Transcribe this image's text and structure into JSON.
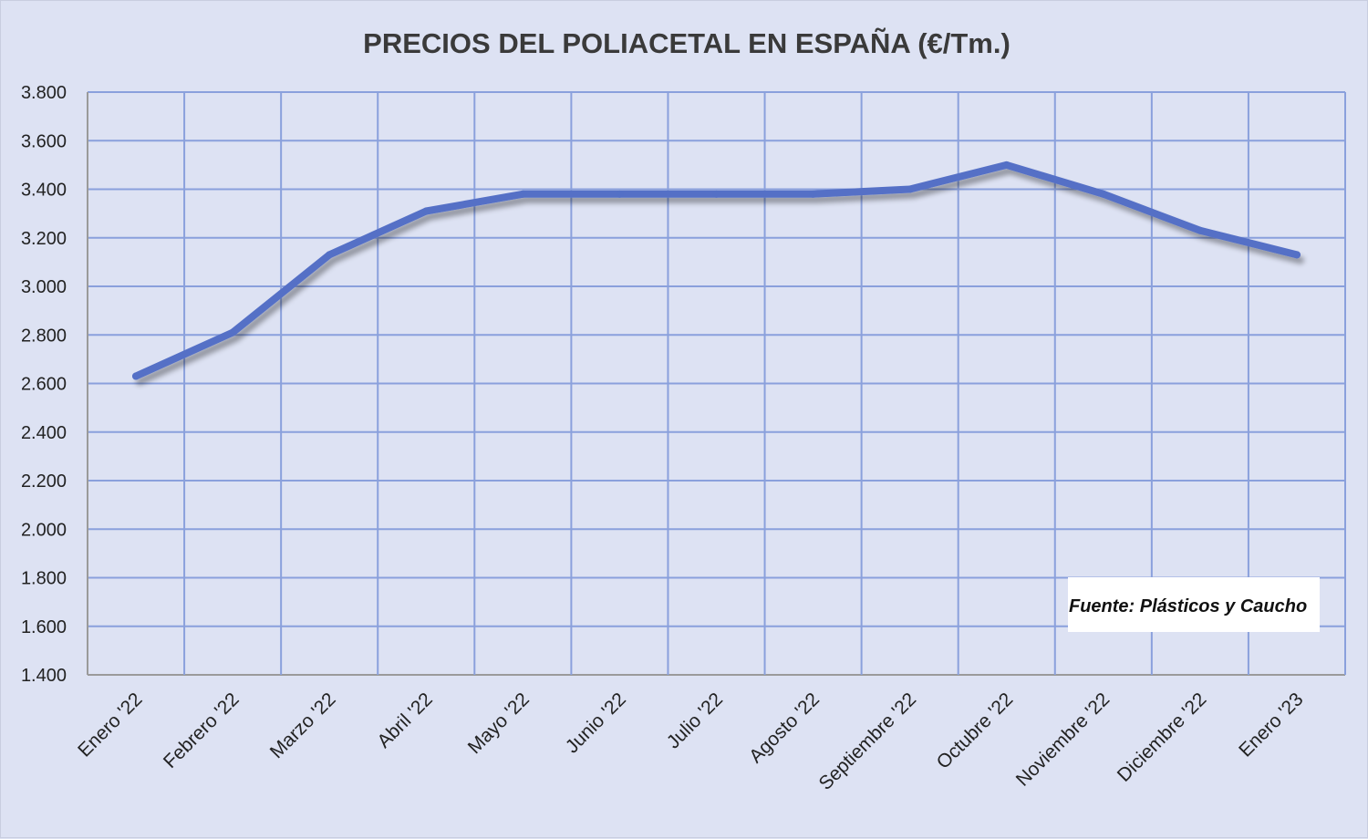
{
  "chart_data": {
    "type": "line",
    "title": "PRECIOS DEL POLIACETAL  EN ESPAÑA (€/Tm.)",
    "categories": [
      "Enero '22",
      "Febrero '22",
      "Marzo '22",
      "Abril '22",
      "Mayo '22",
      "Junio '22",
      "Julio '22",
      "Agosto '22",
      "Septiembre '22",
      "Octubre '22",
      "Noviembre '22",
      "Diciembre '22",
      "Enero '23"
    ],
    "series": [
      {
        "values": [
          2630,
          2810,
          3130,
          3310,
          3380,
          3380,
          3380,
          3380,
          3400,
          3500,
          3380,
          3230,
          3130
        ]
      }
    ],
    "ylim": [
      1400,
      3800
    ],
    "ytick_step": 200,
    "grid": true,
    "annotation": "Fuente: Plásticos y Caucho",
    "colors": {
      "line": "#5470c6",
      "grid": "#8aa0dc",
      "background": "#dde2f3"
    }
  }
}
